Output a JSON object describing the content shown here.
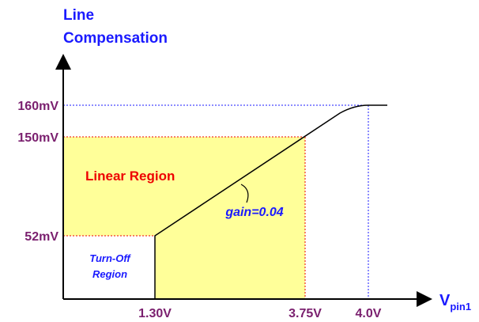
{
  "y_axis": {
    "title": [
      "Line",
      "Compensation"
    ],
    "ticks": [
      "160mV",
      "150mV",
      "52mV"
    ]
  },
  "x_axis": {
    "label": "V",
    "label_sub": "pin1",
    "ticks": [
      "1.30V",
      "3.75V",
      "4.0V"
    ]
  },
  "regions": {
    "linear": "Linear Region",
    "turn_off": [
      "Turn-Off",
      "Region"
    ]
  },
  "annotation": "gain=0.04"
}
